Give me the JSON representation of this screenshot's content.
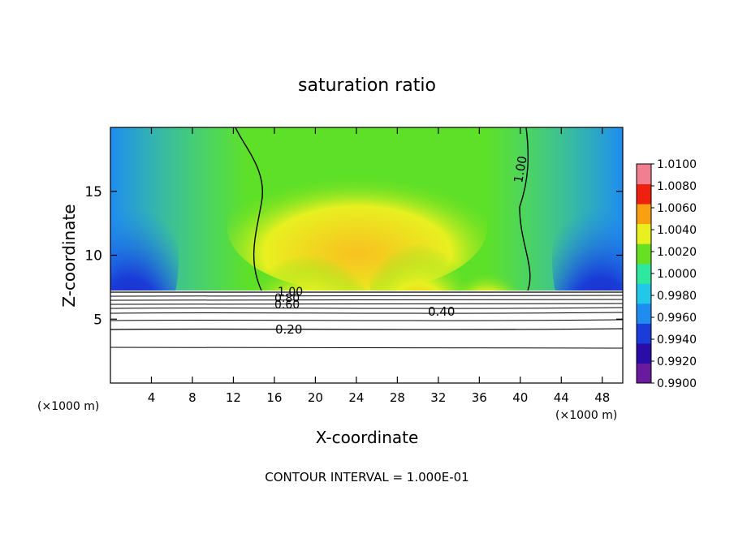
{
  "chart_data": {
    "type": "heatmap",
    "title": "saturation ratio",
    "xlabel": "X-coordinate",
    "ylabel": "Z-coordinate",
    "x_unit": "(×1000 m)",
    "x_unit_right": "(×1000 m)",
    "xlim": [
      0,
      50
    ],
    "ylim": [
      0,
      20
    ],
    "x_ticks": [
      4,
      8,
      12,
      16,
      20,
      24,
      28,
      32,
      36,
      40,
      44,
      48
    ],
    "y_ticks": [
      5,
      10,
      15
    ],
    "colorbar": {
      "min": 0.99,
      "max": 1.01,
      "levels": [
        0.99,
        0.992,
        0.994,
        0.996,
        0.998,
        1.0,
        1.002,
        1.004,
        1.006,
        1.008,
        1.01
      ],
      "labels": [
        "1.0100",
        "1.0080",
        "1.0060",
        "1.0040",
        "1.0020",
        "1.0000",
        "0.9980",
        "0.9960",
        "0.9940",
        "0.9920",
        "0.9900"
      ],
      "colors": [
        "#6a1a9c",
        "#2a0ca8",
        "#1a3cd8",
        "#1f8cf0",
        "#22c8e8",
        "#2fe8a0",
        "#66e020",
        "#e8f020",
        "#f8a010",
        "#f02010",
        "#f08090"
      ]
    },
    "contour_labels": [
      "1.00",
      "1.00",
      "0.80",
      "0.60",
      "0.40",
      "0.20"
    ],
    "footer": "CONTOUR INTERVAL = 1.000E-01"
  }
}
